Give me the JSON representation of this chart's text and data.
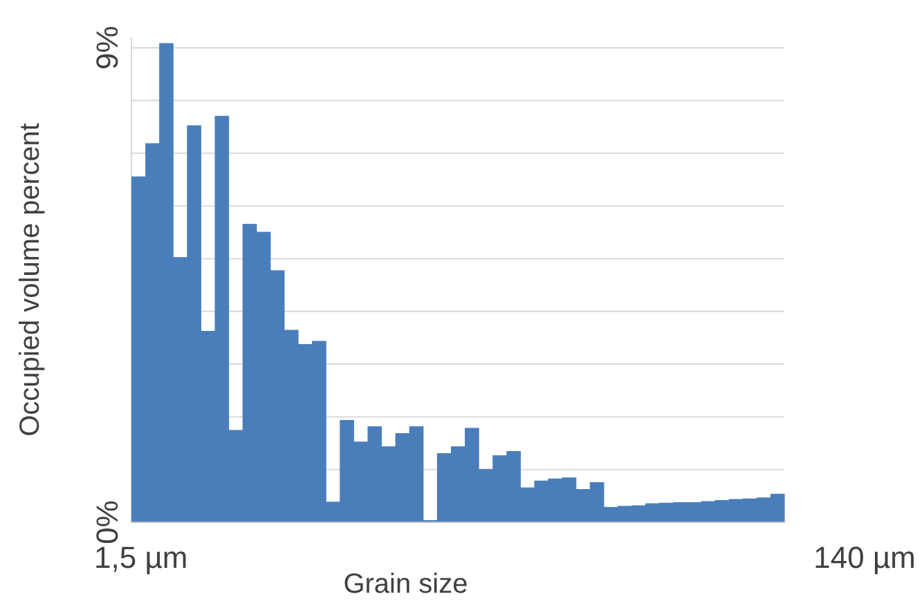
{
  "chart_data": {
    "type": "bar",
    "xlabel": "Grain size",
    "ylabel": "Occupied volume percent",
    "categories": [
      null,
      null,
      null,
      null,
      null,
      null,
      null,
      null,
      null,
      null,
      null,
      null,
      null,
      null,
      null,
      null,
      null,
      null,
      null,
      null,
      null,
      null,
      null,
      null,
      null,
      null,
      null,
      null,
      null,
      null,
      null,
      null,
      null,
      null,
      null,
      null,
      null,
      null,
      null,
      null,
      null,
      null,
      null,
      null,
      null,
      null,
      null
    ],
    "values": [
      6.56,
      7.19,
      9.09,
      5.03,
      7.53,
      3.63,
      7.71,
      1.75,
      5.66,
      5.51,
      4.78,
      3.65,
      3.38,
      3.44,
      0.39,
      1.94,
      1.53,
      1.82,
      1.44,
      1.69,
      1.82,
      0.04,
      1.31,
      1.44,
      1.79,
      1.01,
      1.27,
      1.35,
      0.66,
      0.79,
      0.83,
      0.85,
      0.63,
      0.76,
      0.29,
      0.31,
      0.32,
      0.36,
      0.37,
      0.38,
      0.38,
      0.4,
      0.42,
      0.44,
      0.45,
      0.47,
      0.54
    ],
    "color": "#4a7ebb",
    "ylim": [
      0,
      9.2
    ],
    "yticks": [
      {
        "value": 0,
        "label": "0%"
      },
      {
        "value": 1,
        "label": null
      },
      {
        "value": 2,
        "label": null
      },
      {
        "value": 3,
        "label": null
      },
      {
        "value": 4,
        "label": null
      },
      {
        "value": 5,
        "label": null
      },
      {
        "value": 6,
        "label": null
      },
      {
        "value": 7,
        "label": null
      },
      {
        "value": 8,
        "label": null
      },
      {
        "value": 9,
        "label": "9%"
      }
    ],
    "grid": "y",
    "annotations": [
      "1,5 µm",
      "140 µm"
    ]
  }
}
